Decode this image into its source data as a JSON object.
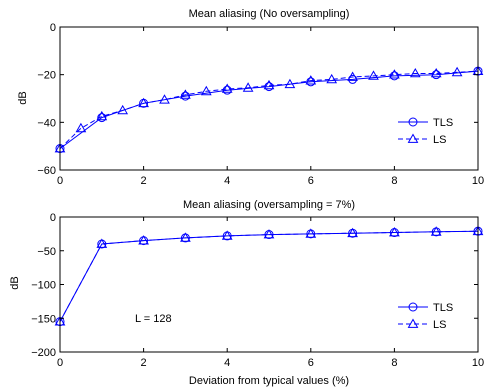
{
  "chart_data": [
    {
      "type": "line",
      "title": "Mean aliasing (No oversampling)",
      "xlabel": "",
      "ylabel": "dB",
      "xlim": [
        0,
        10
      ],
      "ylim": [
        -60,
        0
      ],
      "xticks": [
        0,
        2,
        4,
        6,
        8,
        10
      ],
      "yticks": [
        0,
        -20,
        -40,
        -60
      ],
      "xtick_labels": [
        "0",
        "2",
        "4",
        "6",
        "8",
        "10"
      ],
      "ytick_labels": [
        "0",
        "−20",
        "−40",
        "−60"
      ],
      "legend_position": "bottom-right",
      "annotation": "",
      "series": [
        {
          "name": "TLS",
          "marker": "circle",
          "line_style": "solid",
          "color": "#0000ff",
          "x": [
            0,
            1,
            2,
            3,
            4,
            5,
            6,
            7,
            8,
            9,
            10
          ],
          "values": [
            -51,
            -38,
            -32,
            -29,
            -26.5,
            -25,
            -23,
            -22,
            -20.5,
            -20,
            -18.5
          ]
        },
        {
          "name": "LS",
          "marker": "triangle",
          "line_style": "dashed",
          "color": "#0000ff",
          "x": [
            0,
            0.5,
            1,
            1.5,
            2,
            2.5,
            3,
            3.5,
            4,
            4.5,
            5,
            5.5,
            6,
            6.5,
            7,
            7.5,
            8,
            8.5,
            9,
            9.5,
            10
          ],
          "values": [
            -51,
            -42.5,
            -37.5,
            -35,
            -32,
            -30.5,
            -28.5,
            -27,
            -26,
            -25.5,
            -24.5,
            -24,
            -22.5,
            -22,
            -21,
            -20.5,
            -20,
            -19.5,
            -19.5,
            -19,
            -18.5
          ]
        }
      ]
    },
    {
      "type": "line",
      "title": "Mean aliasing (oversampling = 7%)",
      "xlabel": "Deviation from typical values (%)",
      "ylabel": "dB",
      "xlim": [
        0,
        10
      ],
      "ylim": [
        -200,
        0
      ],
      "xticks": [
        0,
        2,
        4,
        6,
        8,
        10
      ],
      "yticks": [
        0,
        -50,
        -100,
        -150,
        -200
      ],
      "xtick_labels": [
        "0",
        "2",
        "4",
        "6",
        "8",
        "10"
      ],
      "ytick_labels": [
        "0",
        "−50",
        "−100",
        "−150",
        "−200"
      ],
      "legend_position": "bottom-right",
      "annotation": "L = 128",
      "series": [
        {
          "name": "TLS",
          "marker": "circle",
          "line_style": "solid",
          "color": "#0000ff",
          "x": [
            0,
            1,
            2,
            3,
            4,
            5,
            6,
            7,
            8,
            9,
            10
          ],
          "values": [
            -155,
            -40,
            -35,
            -31,
            -28,
            -26,
            -25,
            -24,
            -23,
            -22,
            -21
          ]
        },
        {
          "name": "LS",
          "marker": "triangle",
          "line_style": "dashed",
          "color": "#0000ff",
          "x": [
            0,
            1,
            2,
            3,
            4,
            5,
            6,
            7,
            8,
            9,
            10
          ],
          "values": [
            -155,
            -40,
            -35,
            -31,
            -28,
            -26,
            -25,
            -24,
            -23,
            -22,
            -21
          ]
        }
      ]
    }
  ]
}
